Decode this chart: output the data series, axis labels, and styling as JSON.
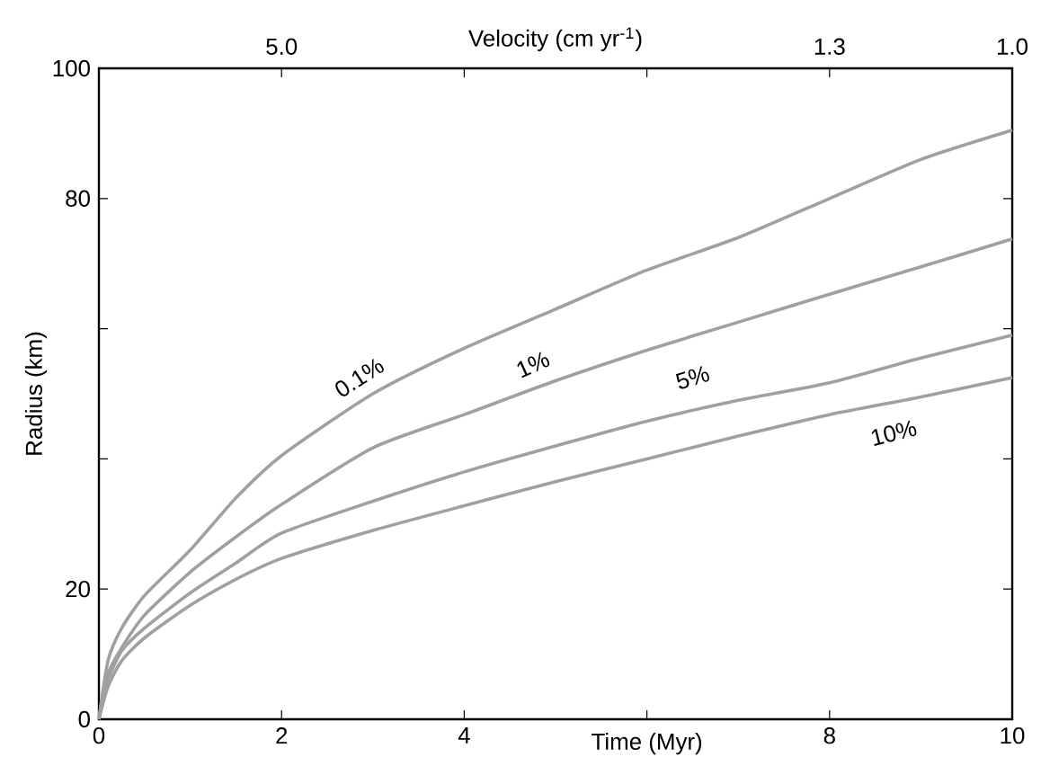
{
  "chart_data": {
    "type": "line",
    "xlabel": "Time (Myr)",
    "ylabel": "Radius (km)",
    "x2label": "Velocity (cm yr$^{-1}$)",
    "xlim": [
      0,
      10
    ],
    "ylim": [
      0,
      100
    ],
    "xticks": [
      0,
      2,
      4,
      {
        "value": 6,
        "label": null
      },
      8,
      10
    ],
    "yticks": [
      0,
      20,
      {
        "value": 40,
        "label": null
      },
      {
        "value": 60,
        "label": null
      },
      80,
      100
    ],
    "annotations": [
      "5.0",
      "1.3",
      "1.0"
    ],
    "x": [
      0,
      0.1,
      0.25,
      0.5,
      1,
      1.5,
      2,
      3,
      4,
      5,
      6,
      7,
      8,
      9,
      10
    ],
    "series": [
      {
        "name": "0.1%",
        "color": "#a0a0a0",
        "values": [
          0,
          9,
          14,
          19,
          26,
          34,
          40.5,
          50,
          57,
          63,
          69,
          74,
          80,
          86,
          90.5
        ]
      },
      {
        "name": "1%",
        "color": "#a0a0a0",
        "values": [
          0,
          7,
          11,
          16,
          22.6,
          28,
          33,
          41.7,
          46.8,
          52,
          56.7,
          61,
          65.3,
          69.5,
          73.8
        ]
      },
      {
        "name": "5%",
        "color": "#a0a0a0",
        "values": [
          0,
          6,
          10.5,
          14,
          19.4,
          24,
          28.6,
          33.5,
          38,
          42,
          45.8,
          49,
          51.7,
          55.5,
          59
        ]
      },
      {
        "name": "10%",
        "color": "#a0a0a0",
        "values": [
          0,
          5,
          9,
          12.5,
          17.5,
          21.5,
          24.7,
          29,
          32.8,
          36.5,
          40,
          43.5,
          46.8,
          49.5,
          52.5
        ]
      }
    ]
  }
}
